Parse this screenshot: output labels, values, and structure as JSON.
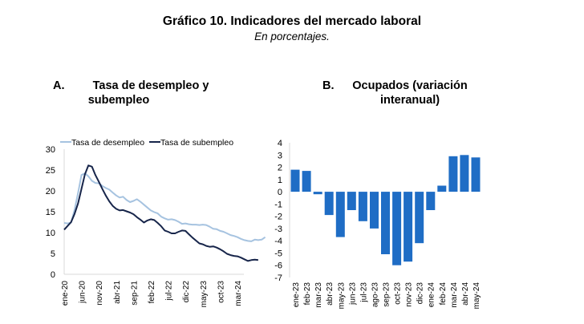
{
  "header": {
    "title": "Gráfico 10. Indicadores del mercado laboral",
    "subtitle": "En porcentajes."
  },
  "chart_data": [
    {
      "id": "A",
      "type": "line",
      "letter": "A.",
      "title_line1": "Tasa de desempleo y",
      "title_line2": "subempleo",
      "ylim": [
        0,
        30
      ],
      "yticks": [
        0,
        5,
        10,
        15,
        20,
        25,
        30
      ],
      "xtick_labels": [
        "ene-20",
        "jun-20",
        "nov-20",
        "abr-21",
        "sep-21",
        "feb-22",
        "jul-22",
        "dic-22",
        "may-23",
        "oct-23",
        "mar-24"
      ],
      "xtick_step_months": 5,
      "grid": false,
      "legend": "top",
      "start": "ene-20",
      "series": [
        {
          "name": "Tasa de desempleo",
          "color": "#a6c3e0",
          "values": [
            12.3,
            12.2,
            12.4,
            15.5,
            19.5,
            23.8,
            24.2,
            23.5,
            22.4,
            21.9,
            21.8,
            21.2,
            20.7,
            20.3,
            19.6,
            18.9,
            18.4,
            18.6,
            17.8,
            17.3,
            17.6,
            18.0,
            17.4,
            16.7,
            16.0,
            15.3,
            14.9,
            14.6,
            13.8,
            13.4,
            13.1,
            13.2,
            13.0,
            12.6,
            12.1,
            12.2,
            12.0,
            11.9,
            11.9,
            11.8,
            11.9,
            11.8,
            11.4,
            10.9,
            10.8,
            10.4,
            10.2,
            9.8,
            9.4,
            9.2,
            8.9,
            8.5,
            8.2,
            8.0,
            7.9,
            8.3,
            8.2,
            8.3,
            8.9
          ]
        },
        {
          "name": "Tasa de subempleo",
          "color": "#17254a",
          "values": [
            10.7,
            11.6,
            12.5,
            14.5,
            17.0,
            20.5,
            24.0,
            26.1,
            25.8,
            23.8,
            22.2,
            20.5,
            18.9,
            17.5,
            16.4,
            15.7,
            15.3,
            15.4,
            15.1,
            14.8,
            14.4,
            13.7,
            13.1,
            12.4,
            12.9,
            13.2,
            13.0,
            12.3,
            11.5,
            10.5,
            10.2,
            9.8,
            9.8,
            10.2,
            10.5,
            10.4,
            9.6,
            8.8,
            8.1,
            7.4,
            7.2,
            6.8,
            6.6,
            6.7,
            6.4,
            6.0,
            5.5,
            4.9,
            4.6,
            4.4,
            4.3,
            4.0,
            3.6,
            3.2,
            3.4,
            3.5,
            3.4
          ]
        }
      ]
    },
    {
      "id": "B",
      "type": "bar",
      "letter": "B.",
      "title_line1": "Ocupados (variación",
      "title_line2": "interanual)",
      "ylim": [
        -7,
        4
      ],
      "yticks": [
        -7,
        -6,
        -5,
        -4,
        -3,
        -2,
        -1,
        0,
        1,
        2,
        3,
        4
      ],
      "grid": false,
      "color": "#1f6dc5",
      "categories": [
        "ene-23",
        "feb-23",
        "mar-23",
        "abr-23",
        "may-23",
        "jun-23",
        "jul-23",
        "ago-23",
        "sep-23",
        "oct-23",
        "nov-23",
        "dic-23",
        "ene-24",
        "feb-24",
        "mar-24",
        "abr-24",
        "may-24"
      ],
      "values": [
        1.8,
        1.7,
        -0.2,
        -1.9,
        -3.7,
        -1.5,
        -2.4,
        -3.0,
        -5.1,
        -6.0,
        -5.7,
        -4.2,
        -1.5,
        0.5,
        2.9,
        3.0,
        2.8
      ]
    }
  ]
}
